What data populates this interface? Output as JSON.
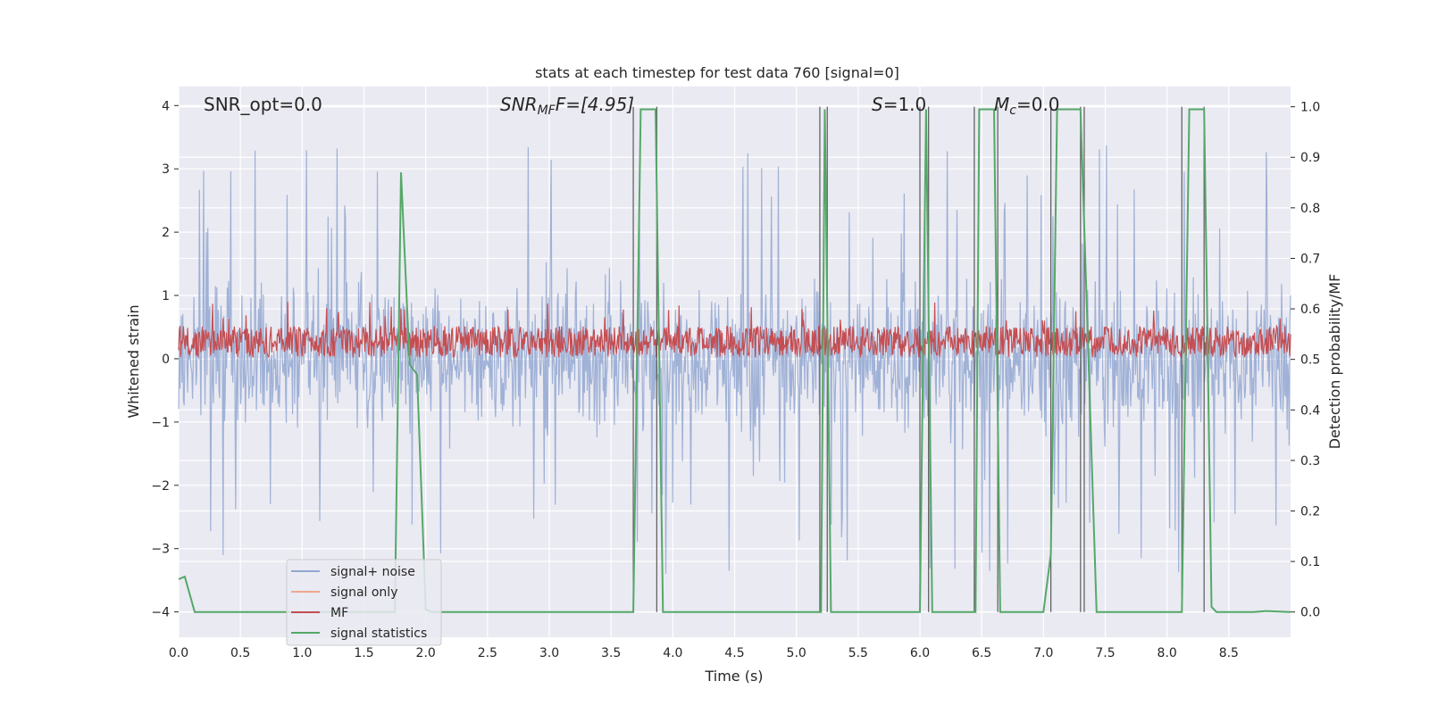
{
  "chart_data": {
    "type": "line",
    "title": "stats at each timestep for test data 760 [signal=0]",
    "xlabel": "Time (s)",
    "ylabel": "Whitened strain",
    "y2label": "Detection probability/MF",
    "xlim": [
      0.0,
      9.0
    ],
    "ylim": [
      -4.4,
      4.3
    ],
    "y2lim": [
      -0.05,
      1.04
    ],
    "xticks": [
      "0.0",
      "0.5",
      "1.0",
      "1.5",
      "2.0",
      "2.5",
      "3.0",
      "3.5",
      "4.0",
      "4.5",
      "5.0",
      "5.5",
      "6.0",
      "6.5",
      "7.0",
      "7.5",
      "8.0",
      "8.5"
    ],
    "yticks": [
      "−4",
      "−3",
      "−2",
      "−1",
      "0",
      "1",
      "2",
      "3",
      "4"
    ],
    "y2ticks": [
      "0.0",
      "0.1",
      "0.2",
      "0.3",
      "0.4",
      "0.5",
      "0.6",
      "0.7",
      "0.8",
      "0.9",
      "1.0"
    ],
    "grid": true,
    "legend_position": "lower-left",
    "annotations": {
      "snr_opt": "SNR_opt=0.0",
      "snr_mf_main": "SNR",
      "snr_mf_sub": "MF",
      "snr_mf_value": "F=[4.95]",
      "s_main": "S",
      "s_value": "=1.0",
      "mc_main": "M",
      "mc_sub": "c",
      "mc_value": "=0.0"
    },
    "series": [
      {
        "name": "signal+ noise",
        "color": "#92a7d1",
        "noise_range": [
          -3.4,
          3.8
        ]
      },
      {
        "name": "signal only",
        "color": "#eda78e",
        "values": []
      },
      {
        "name": "MF",
        "color": "#c44e52",
        "noise_range": [
          0.0,
          0.95
        ]
      },
      {
        "name": "signal statistics",
        "color": "#55a868",
        "x": [
          0.0,
          0.05,
          0.13,
          1.75,
          1.8,
          1.87,
          1.93,
          2.0,
          2.05,
          3.68,
          3.74,
          3.86,
          3.92,
          5.2,
          5.23,
          5.28,
          6.0,
          6.05,
          6.1,
          6.45,
          6.48,
          6.6,
          6.65,
          7.0,
          7.06,
          7.11,
          7.3,
          7.43,
          8.12,
          8.18,
          8.3,
          8.36,
          8.4,
          8.7,
          8.8,
          9.0
        ],
        "y": [
          0.065,
          0.07,
          0.0,
          0.0,
          0.87,
          0.49,
          0.47,
          0.005,
          0.0,
          0.0,
          0.995,
          0.995,
          0.0,
          0.0,
          0.995,
          0.0,
          0.0,
          0.995,
          0.0,
          0.0,
          0.995,
          0.995,
          0.0,
          0.0,
          0.115,
          0.995,
          0.995,
          0.0,
          0.0,
          0.995,
          0.995,
          0.01,
          0.0,
          0.0,
          0.002,
          0.0
        ]
      }
    ],
    "trigger_lines_x": [
      3.68,
      3.87,
      5.19,
      5.25,
      6.0,
      6.07,
      6.44,
      6.63,
      7.06,
      7.3,
      7.33,
      8.12,
      8.3
    ]
  }
}
